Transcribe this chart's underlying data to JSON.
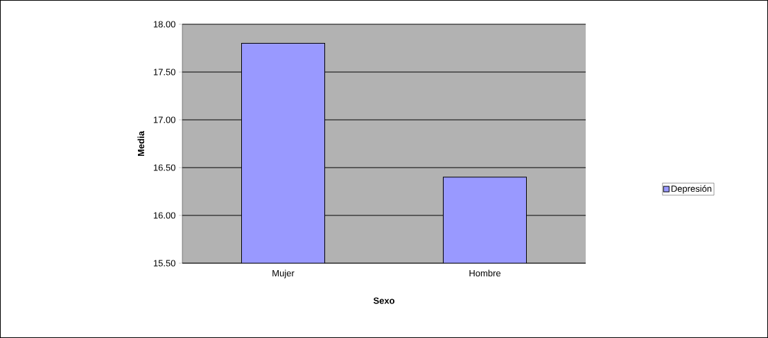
{
  "chart_data": {
    "type": "bar",
    "xlabel": "Sexo",
    "ylabel": "Media",
    "categories": [
      "Mujer",
      "Hombre"
    ],
    "series": [
      {
        "name": "Depresión",
        "color": "#9999ff",
        "values": [
          17.8,
          16.4
        ]
      }
    ],
    "ylim": [
      15.5,
      18.0
    ],
    "yticks": [
      {
        "value": 15.5,
        "label": "15.50"
      },
      {
        "value": 16.0,
        "label": "16.00"
      },
      {
        "value": 16.5,
        "label": "16.50"
      },
      {
        "value": 17.0,
        "label": "17.00"
      },
      {
        "value": 17.5,
        "label": "17.50"
      },
      {
        "value": 18.0,
        "label": "18.00"
      }
    ],
    "grid": "y",
    "legend": "right"
  }
}
